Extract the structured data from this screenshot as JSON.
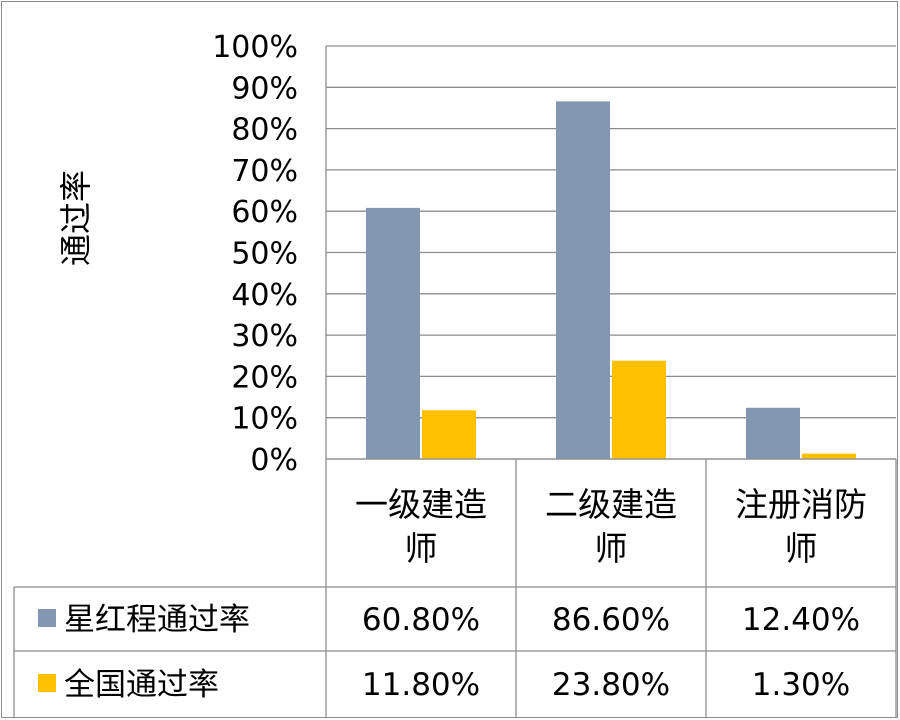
{
  "chart_data": {
    "type": "bar",
    "title": "",
    "ylabel": "通过率",
    "ylim": [
      0,
      100
    ],
    "yticks": [
      "0%",
      "10%",
      "20%",
      "30%",
      "40%",
      "50%",
      "60%",
      "70%",
      "80%",
      "90%",
      "100%"
    ],
    "categories": [
      [
        "一级建造",
        "师"
      ],
      [
        "二级建造",
        "师"
      ],
      [
        "注册消防",
        "师"
      ]
    ],
    "series": [
      {
        "name": "星红程通过率",
        "values": [
          60.8,
          86.6,
          12.4
        ],
        "labels": [
          "60.80%",
          "86.60%",
          "12.40%"
        ],
        "color": "#8497b0"
      },
      {
        "name": "全国通过率",
        "values": [
          11.8,
          23.8,
          1.3
        ],
        "labels": [
          "11.80%",
          "23.80%",
          "1.30%"
        ],
        "color": "#ffc000"
      }
    ],
    "grid": true,
    "legend": "data-table"
  }
}
